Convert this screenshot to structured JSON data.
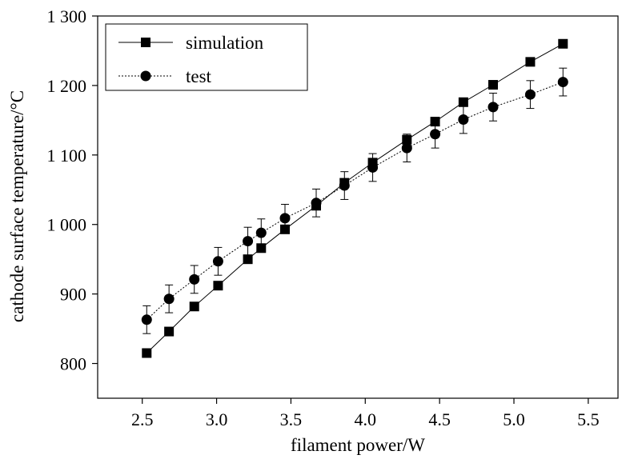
{
  "chart_data": {
    "type": "scatter",
    "xlabel": "filament power/W",
    "ylabel": "cathode surface temperature/°C",
    "xlim": [
      2.2,
      5.7
    ],
    "ylim": [
      750,
      1300
    ],
    "xticks": [
      2.5,
      3.0,
      3.5,
      4.0,
      4.5,
      5.0,
      5.5
    ],
    "xtick_labels": [
      "2.5",
      "3.0",
      "3.5",
      "4.0",
      "4.5",
      "5.0",
      "5.5"
    ],
    "yticks": [
      800,
      900,
      1000,
      1100,
      1200,
      1300
    ],
    "ytick_labels": [
      "800",
      "900",
      "1 000",
      "1 100",
      "1 200",
      "1 300"
    ],
    "grid": false,
    "legend_position": "top-left",
    "series": [
      {
        "name": "simulation",
        "marker": "square",
        "line": "solid",
        "color": "#000000",
        "x": [
          2.53,
          2.68,
          2.85,
          3.01,
          3.21,
          3.3,
          3.46,
          3.67,
          3.86,
          4.05,
          4.28,
          4.47,
          4.66,
          4.86,
          5.11,
          5.33
        ],
        "y": [
          815,
          846,
          882,
          912,
          950,
          966,
          993,
          1027,
          1060,
          1089,
          1122,
          1148,
          1176,
          1201,
          1234,
          1260
        ]
      },
      {
        "name": "test",
        "marker": "circle",
        "line": "dotted",
        "color": "#000000",
        "x": [
          2.53,
          2.68,
          2.85,
          3.01,
          3.21,
          3.3,
          3.46,
          3.67,
          3.86,
          4.05,
          4.28,
          4.47,
          4.66,
          4.86,
          5.11,
          5.33
        ],
        "y": [
          863,
          893,
          921,
          947,
          976,
          988,
          1009,
          1031,
          1056,
          1082,
          1110,
          1130,
          1151,
          1169,
          1187,
          1205
        ],
        "error": [
          20,
          20,
          20,
          20,
          20,
          20,
          20,
          20,
          20,
          20,
          20,
          20,
          20,
          20,
          20,
          20
        ]
      }
    ]
  }
}
